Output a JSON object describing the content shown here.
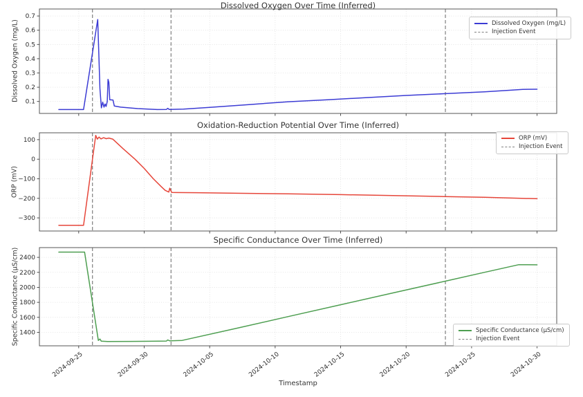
{
  "x_axis": {
    "label": "Timestamp",
    "unit": "days relative to 2024-09-25",
    "xlim_days": [
      -3,
      36.5
    ],
    "ticks": [
      {
        "day": 0,
        "label": "2024-09-25"
      },
      {
        "day": 5,
        "label": "2024-09-30"
      },
      {
        "day": 10,
        "label": "2024-10-05"
      },
      {
        "day": 15,
        "label": "2024-10-10"
      },
      {
        "day": 20,
        "label": "2024-10-15"
      },
      {
        "day": 25,
        "label": "2024-10-20"
      },
      {
        "day": 30,
        "label": "2024-10-25"
      },
      {
        "day": 35,
        "label": "2024-10-30"
      }
    ]
  },
  "chart_data": [
    {
      "type": "line",
      "title": "Dissolved Oxygen Over Time (Inferred)",
      "ylabel": "Dissolved Oxygen (mg/L)",
      "ylim": [
        0.016,
        0.749
      ],
      "yticks": [
        0.1,
        0.2,
        0.3,
        0.4,
        0.5,
        0.6,
        0.7
      ],
      "ytick_labels": [
        "0.1",
        "0.2",
        "0.3",
        "0.4",
        "0.5",
        "0.6",
        "0.7"
      ],
      "grid": true,
      "legend_position": "upper right",
      "injection_label": "Injection Event",
      "injection_color": "#7f7f7f",
      "injection_days": [
        1.05,
        7.05,
        28
      ],
      "series": [
        {
          "name": "Dissolved Oxygen (mg/L)",
          "color": "#3b3bd4",
          "points": [
            [
              -1.52,
              0.043
            ],
            [
              0.37,
              0.043
            ],
            [
              1.45,
              0.675
            ],
            [
              1.62,
              0.19
            ],
            [
              1.73,
              0.055
            ],
            [
              1.83,
              0.095
            ],
            [
              1.93,
              0.06
            ],
            [
              2.01,
              0.082
            ],
            [
              2.09,
              0.065
            ],
            [
              2.18,
              0.1
            ],
            [
              2.24,
              0.255
            ],
            [
              2.3,
              0.235
            ],
            [
              2.37,
              0.112
            ],
            [
              2.62,
              0.11
            ],
            [
              2.72,
              0.068
            ],
            [
              3.2,
              0.06
            ],
            [
              4.5,
              0.05
            ],
            [
              6.0,
              0.043
            ],
            [
              6.7,
              0.044
            ],
            [
              6.8,
              0.052
            ],
            [
              6.9,
              0.044
            ],
            [
              8.0,
              0.046
            ],
            [
              10,
              0.058
            ],
            [
              13,
              0.078
            ],
            [
              16,
              0.098
            ],
            [
              19,
              0.112
            ],
            [
              22,
              0.127
            ],
            [
              25,
              0.142
            ],
            [
              28,
              0.155
            ],
            [
              31,
              0.168
            ],
            [
              33,
              0.179
            ],
            [
              33.9,
              0.185
            ],
            [
              35,
              0.186
            ]
          ]
        }
      ]
    },
    {
      "type": "line",
      "title": "Oxidation-Reduction Potential Over Time (Inferred)",
      "ylabel": "ORP (mV)",
      "ylim": [
        -367,
        135
      ],
      "yticks": [
        -300,
        -200,
        -100,
        0,
        100
      ],
      "ytick_labels": [
        "−300",
        "−200",
        "−100",
        "0",
        "100"
      ],
      "grid": true,
      "legend_position": "upper right",
      "injection_label": "Injection Event",
      "injection_color": "#7f7f7f",
      "injection_days": [
        1.05,
        7.05,
        28
      ],
      "series": [
        {
          "name": "ORP (mV)",
          "color": "#e64539",
          "points": [
            [
              -1.52,
              -338
            ],
            [
              0.37,
              -338
            ],
            [
              1.3,
              122
            ],
            [
              1.42,
              103
            ],
            [
              1.55,
              113
            ],
            [
              1.7,
              104
            ],
            [
              1.9,
              110
            ],
            [
              2.1,
              105
            ],
            [
              2.3,
              108
            ],
            [
              2.6,
              103
            ],
            [
              3.4,
              53
            ],
            [
              4.3,
              0
            ],
            [
              5.0,
              -47
            ],
            [
              5.7,
              -100
            ],
            [
              6.3,
              -140
            ],
            [
              6.6,
              -159
            ],
            [
              6.88,
              -168
            ],
            [
              6.95,
              -148
            ],
            [
              7.1,
              -170
            ],
            [
              9,
              -171
            ],
            [
              12,
              -174
            ],
            [
              16,
              -177
            ],
            [
              20,
              -181
            ],
            [
              24,
              -186
            ],
            [
              28,
              -191
            ],
            [
              31,
              -195
            ],
            [
              35,
              -202
            ]
          ]
        }
      ]
    },
    {
      "type": "line",
      "title": "Specific Conductance Over Time (Inferred)",
      "ylabel": "Specific Conductance (µS/cm)",
      "ylim": [
        1220,
        2530
      ],
      "yticks": [
        1400,
        1600,
        1800,
        2000,
        2200,
        2400
      ],
      "ytick_labels": [
        "1400",
        "1600",
        "1800",
        "2000",
        "2200",
        "2400"
      ],
      "grid": true,
      "legend_position": "lower right",
      "injection_label": "Injection Event",
      "injection_color": "#7f7f7f",
      "injection_days": [
        1.05,
        7.05,
        28
      ],
      "series": [
        {
          "name": "Specific Conductance (µS/cm)",
          "color": "#4d9e50",
          "points": [
            [
              -1.52,
              2470
            ],
            [
              0.45,
              2470
            ],
            [
              1.5,
              1292
            ],
            [
              1.62,
              1310
            ],
            [
              1.72,
              1283
            ],
            [
              2.2,
              1278
            ],
            [
              4,
              1279
            ],
            [
              5.5,
              1281
            ],
            [
              6.7,
              1284
            ],
            [
              6.8,
              1298
            ],
            [
              6.95,
              1286
            ],
            [
              7.9,
              1292
            ],
            [
              12,
              1452
            ],
            [
              16,
              1610
            ],
            [
              20,
              1768
            ],
            [
              24,
              1926
            ],
            [
              28,
              2083
            ],
            [
              31,
              2201
            ],
            [
              33.6,
              2302
            ],
            [
              35,
              2300
            ]
          ]
        }
      ]
    }
  ]
}
